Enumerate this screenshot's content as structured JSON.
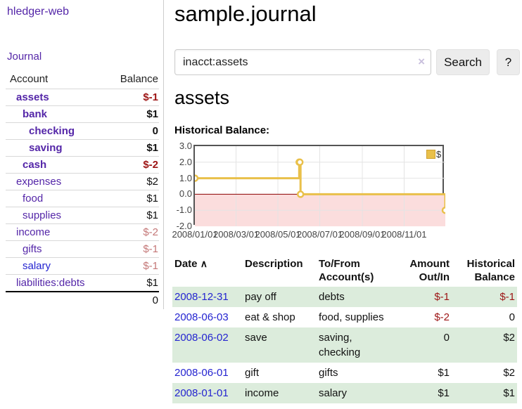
{
  "app": {
    "brand": "hledger-web"
  },
  "sidebar": {
    "journal_link": "Journal",
    "accounts_table": {
      "headers": {
        "account": "Account",
        "balance": "Balance"
      },
      "rows": [
        {
          "account": "assets",
          "balance": "$-1",
          "indent": 1,
          "bold": true,
          "neg": "strong",
          "link": "purple"
        },
        {
          "account": "bank",
          "balance": "$1",
          "indent": 2,
          "bold": true,
          "neg": "none",
          "link": "purple"
        },
        {
          "account": "checking",
          "balance": "0",
          "indent": 3,
          "bold": true,
          "neg": "none",
          "link": "purple"
        },
        {
          "account": "saving",
          "balance": "$1",
          "indent": 3,
          "bold": true,
          "neg": "none",
          "link": "purple"
        },
        {
          "account": "cash",
          "balance": "$-2",
          "indent": 2,
          "bold": true,
          "neg": "strong",
          "link": "purple"
        },
        {
          "account": "expenses",
          "balance": "$2",
          "indent": 1,
          "bold": false,
          "neg": "none",
          "link": "purple"
        },
        {
          "account": "food",
          "balance": "$1",
          "indent": 2,
          "bold": false,
          "neg": "none",
          "link": "purple"
        },
        {
          "account": "supplies",
          "balance": "$1",
          "indent": 2,
          "bold": false,
          "neg": "none",
          "link": "purple"
        },
        {
          "account": "income",
          "balance": "$-2",
          "indent": 1,
          "bold": false,
          "neg": "faded",
          "link": "purple"
        },
        {
          "account": "gifts",
          "balance": "$-1",
          "indent": 2,
          "bold": false,
          "neg": "faded",
          "link": "purple"
        },
        {
          "account": "salary",
          "balance": "$-1",
          "indent": 2,
          "bold": false,
          "neg": "faded",
          "link": "blue"
        },
        {
          "account": "liabilities:debts",
          "balance": "$1",
          "indent": 1,
          "bold": false,
          "neg": "none",
          "link": "purple"
        }
      ],
      "total": "0"
    }
  },
  "main": {
    "title": "sample.journal",
    "search": {
      "value": "inacct:assets",
      "clear_icon": "×",
      "search_button": "Search",
      "help_button": "?"
    },
    "account_heading": "assets",
    "section_label": "Historical Balance:",
    "register": {
      "headers": {
        "date": "Date",
        "sort_icon": "∧",
        "description": "Description",
        "accounts": "To/From Account(s)",
        "amount": "Amount Out/In",
        "balance": "Historical Balance"
      },
      "rows": [
        {
          "date": "2008-12-31",
          "description": "pay off",
          "accounts": "debts",
          "amount": "$-1",
          "balance": "$-1",
          "amount_neg": true,
          "balance_neg": true
        },
        {
          "date": "2008-06-03",
          "description": "eat & shop",
          "accounts": "food, supplies",
          "amount": "$-2",
          "balance": "0",
          "amount_neg": true,
          "balance_neg": false
        },
        {
          "date": "2008-06-02",
          "description": "save",
          "accounts": "saving, checking",
          "amount": "0",
          "balance": "$2",
          "amount_neg": false,
          "balance_neg": false
        },
        {
          "date": "2008-06-01",
          "description": "gift",
          "accounts": "gifts",
          "amount": "$1",
          "balance": "$2",
          "amount_neg": false,
          "balance_neg": false
        },
        {
          "date": "2008-01-01",
          "description": "income",
          "accounts": "salary",
          "amount": "$1",
          "balance": "$1",
          "amount_neg": false,
          "balance_neg": false
        }
      ]
    }
  },
  "chart_data": {
    "type": "line",
    "title": "Historical Balance",
    "series": [
      {
        "name": "$",
        "color": "#e9c04a",
        "step": true,
        "points": [
          [
            "2008-01-01",
            1
          ],
          [
            "2008-06-01",
            2
          ],
          [
            "2008-06-02",
            2
          ],
          [
            "2008-06-03",
            0
          ],
          [
            "2008-12-31",
            -1
          ]
        ]
      }
    ],
    "x_range": [
      "2008-01-01",
      "2008-12-31"
    ],
    "y_range": [
      -2,
      3
    ],
    "y_ticks": [
      3.0,
      2.0,
      1.0,
      0.0,
      -1.0,
      -2.0
    ],
    "x_ticks": [
      "2008/01/01",
      "2008/03/01",
      "2008/05/01",
      "2008/07/01",
      "2008/09/01",
      "2008/11/01"
    ],
    "legend": {
      "label": "$",
      "position": "top-right"
    },
    "grid": true,
    "gridline_color": "#e4e4e4",
    "negative_region_color": "#fbdddd",
    "zero_line_color": "#8b0000"
  },
  "colors": {
    "link_purple": "#5426a8",
    "link_blue": "#2424d0",
    "negative_strong": "#9d1515",
    "negative_faded": "#c47777",
    "row_stripe_green": "#dcecdc",
    "chart_line_gold": "#e9c04a"
  }
}
